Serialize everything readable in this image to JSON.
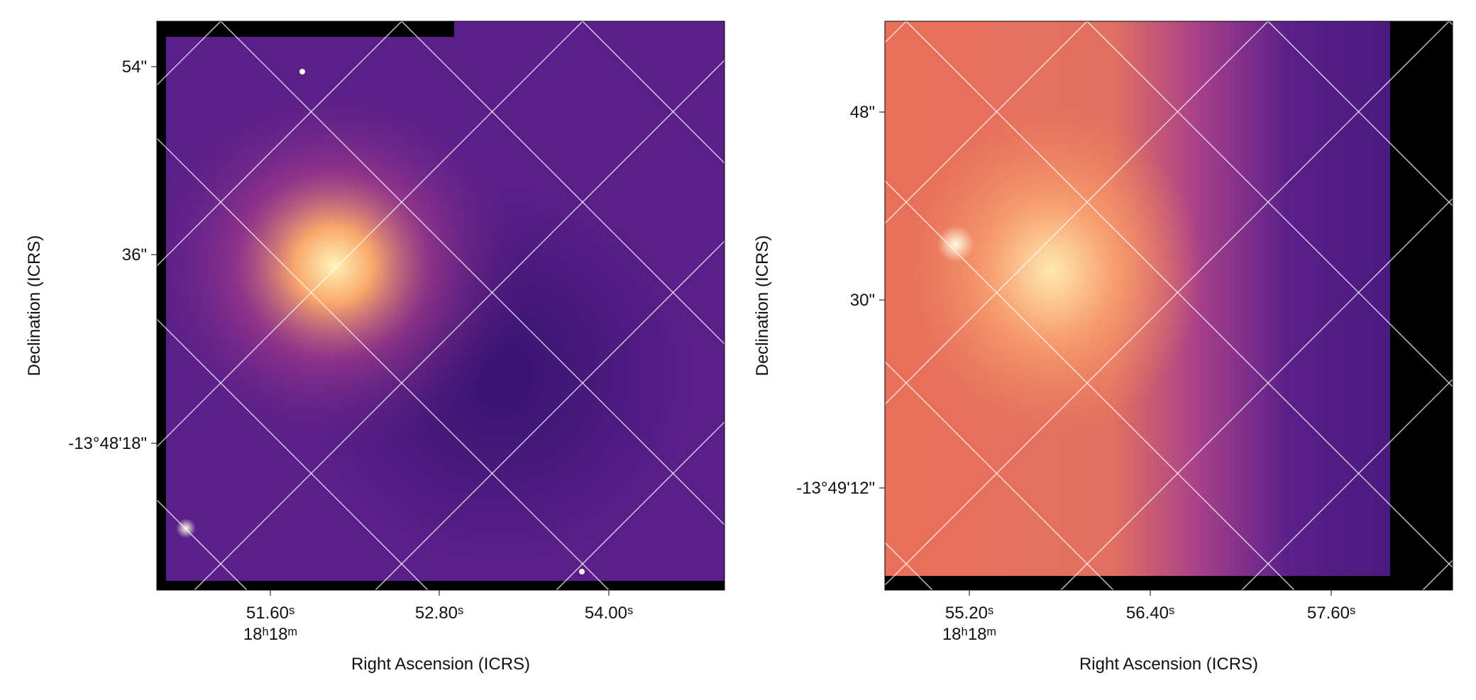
{
  "panels": [
    {
      "x_label": "Right Ascension (ICRS)",
      "y_label": "Declination (ICRS)",
      "xticks": [
        "51.60ˢ",
        "52.80ˢ",
        "54.00ˢ"
      ],
      "x_hours": "18ʰ18ᵐ",
      "yticks": [
        "54\"",
        "36\"",
        "-13°48'18\""
      ]
    },
    {
      "x_label": "Right Ascension (ICRS)",
      "y_label": "Declination (ICRS)",
      "xticks": [
        "55.20ˢ",
        "56.40ˢ",
        "57.60ˢ"
      ],
      "x_hours": "18ʰ18ᵐ",
      "yticks": [
        "48\"",
        "30\"",
        "-13°49'12\""
      ]
    }
  ]
}
